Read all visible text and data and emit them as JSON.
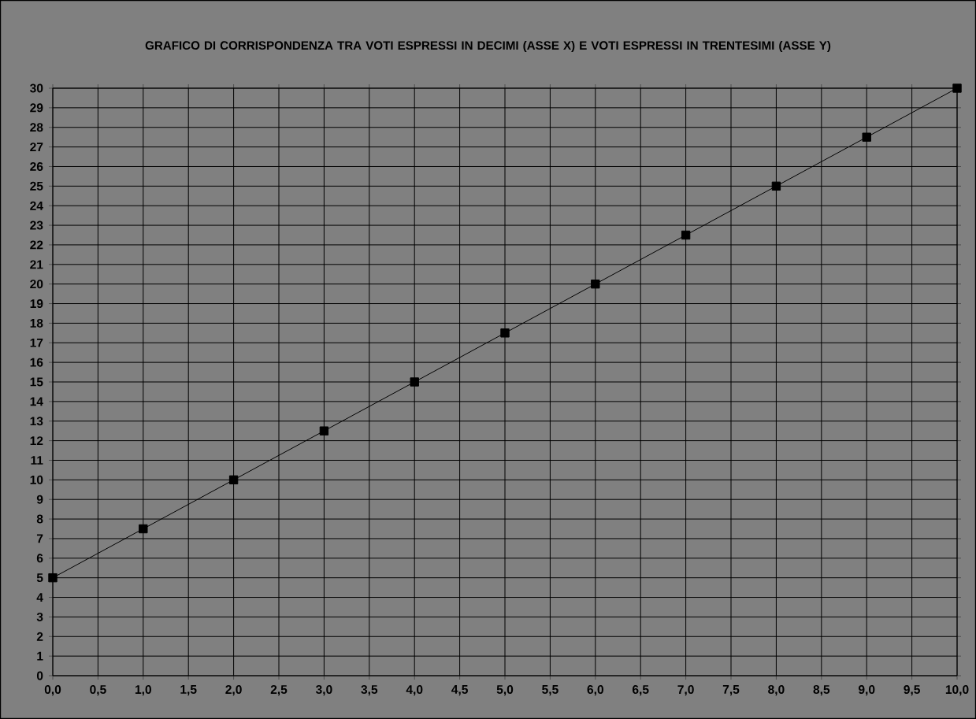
{
  "chart_data": {
    "type": "line",
    "title": "GRAFICO DI CORRISPONDENZA TRA VOTI ESPRESSI  IN DECIMI (ASSE X) E VOTI ESPRESSI IN TRENTESIMI (ASSE Y)",
    "x": [
      0,
      1,
      2,
      3,
      4,
      5,
      6,
      7,
      8,
      9,
      10
    ],
    "series": [
      {
        "color": "#000000",
        "values": [
          5,
          7.5,
          10,
          12.5,
          15,
          17.5,
          20,
          22.5,
          25,
          27.5,
          30
        ]
      }
    ],
    "xlim": [
      0,
      10
    ],
    "ylim": [
      0,
      30
    ],
    "xticks": [
      {
        "value": 0,
        "label": "0,0"
      },
      {
        "value": 0.5,
        "label": "0,5"
      },
      {
        "value": 1,
        "label": "1,0"
      },
      {
        "value": 1.5,
        "label": "1,5"
      },
      {
        "value": 2,
        "label": "2,0"
      },
      {
        "value": 2.5,
        "label": "2,5"
      },
      {
        "value": 3,
        "label": "3,0"
      },
      {
        "value": 3.5,
        "label": "3,5"
      },
      {
        "value": 4,
        "label": "4,0"
      },
      {
        "value": 4.5,
        "label": "4,5"
      },
      {
        "value": 5,
        "label": "5,0"
      },
      {
        "value": 5.5,
        "label": "5,5"
      },
      {
        "value": 6,
        "label": "6,0"
      },
      {
        "value": 6.5,
        "label": "6,5"
      },
      {
        "value": 7,
        "label": "7,0"
      },
      {
        "value": 7.5,
        "label": "7,5"
      },
      {
        "value": 8,
        "label": "8,0"
      },
      {
        "value": 8.5,
        "label": "8,5"
      },
      {
        "value": 9,
        "label": "9,0"
      },
      {
        "value": 9.5,
        "label": "9,5"
      },
      {
        "value": 10,
        "label": "10,0"
      }
    ],
    "yticks": [
      0,
      1,
      2,
      3,
      4,
      5,
      6,
      7,
      8,
      9,
      10,
      11,
      12,
      13,
      14,
      15,
      16,
      17,
      18,
      19,
      20,
      21,
      22,
      23,
      24,
      25,
      26,
      27,
      28,
      29,
      30
    ],
    "grid": true,
    "marker": "square",
    "line_style": "solid"
  }
}
